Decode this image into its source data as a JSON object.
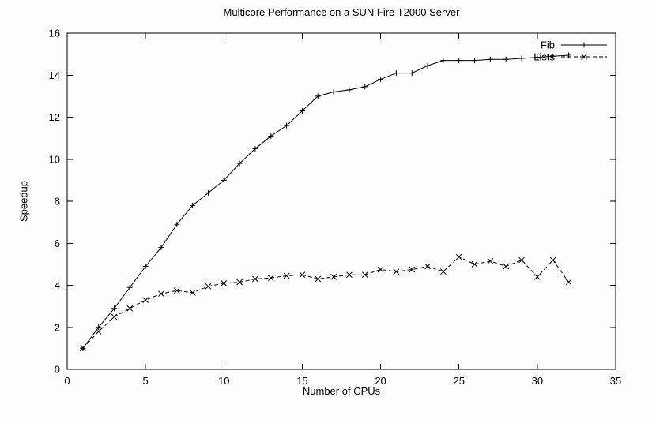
{
  "chart_data": {
    "type": "line",
    "title": "Multicore Performance on a SUN Fire T2000 Server",
    "xlabel": "Number of CPUs",
    "ylabel": "Speedup",
    "xlim": [
      0,
      35
    ],
    "ylim": [
      0,
      16
    ],
    "xticks": [
      0,
      5,
      10,
      15,
      20,
      25,
      30,
      35
    ],
    "yticks": [
      0,
      2,
      4,
      6,
      8,
      10,
      12,
      14,
      16
    ],
    "grid": false,
    "legend_position": "top-right-inside",
    "line_color": "#000000",
    "series": [
      {
        "name": "Fib",
        "marker": "plus",
        "line_style": "solid",
        "x": [
          1,
          2,
          3,
          4,
          5,
          6,
          7,
          8,
          9,
          10,
          11,
          12,
          13,
          14,
          15,
          16,
          17,
          18,
          19,
          20,
          21,
          22,
          23,
          24,
          25,
          26,
          27,
          28,
          29,
          30,
          31,
          32
        ],
        "y": [
          1.0,
          2.0,
          2.9,
          3.9,
          4.9,
          5.8,
          6.9,
          7.8,
          8.4,
          9.0,
          9.8,
          10.5,
          11.1,
          11.6,
          12.3,
          13.0,
          13.2,
          13.3,
          13.45,
          13.8,
          14.1,
          14.1,
          14.45,
          14.7,
          14.7,
          14.7,
          14.75,
          14.75,
          14.8,
          14.85,
          14.9,
          14.95
        ]
      },
      {
        "name": "Lists",
        "marker": "cross",
        "line_style": "dashed",
        "x": [
          1,
          2,
          3,
          4,
          5,
          6,
          7,
          8,
          9,
          10,
          11,
          12,
          13,
          14,
          15,
          16,
          17,
          18,
          19,
          20,
          21,
          22,
          23,
          24,
          25,
          26,
          27,
          28,
          29,
          30,
          31,
          32
        ],
        "y": [
          1.0,
          1.8,
          2.5,
          2.9,
          3.3,
          3.6,
          3.75,
          3.65,
          3.95,
          4.1,
          4.15,
          4.3,
          4.35,
          4.45,
          4.5,
          4.3,
          4.4,
          4.5,
          4.5,
          4.75,
          4.65,
          4.75,
          4.9,
          4.65,
          5.35,
          5.0,
          5.15,
          4.9,
          5.2,
          4.4,
          5.2,
          4.15
        ]
      }
    ]
  }
}
